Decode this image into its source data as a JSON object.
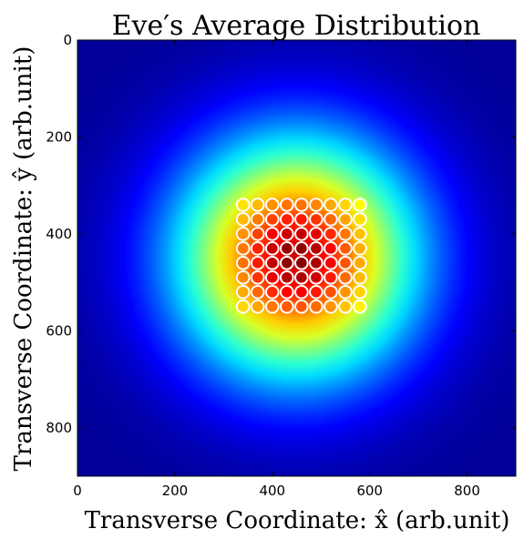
{
  "chart_data": {
    "type": "heatmap",
    "title": "Eve′s Average Distribution",
    "xlabel": "Transverse Coordinate: x̂ (arb.unit)",
    "ylabel": "Transverse Coordinate: ŷ (arb.unit)",
    "xlim": [
      0,
      900
    ],
    "ylim": [
      900,
      0
    ],
    "xticks": [
      0,
      200,
      400,
      600,
      800
    ],
    "yticks": [
      0,
      200,
      400,
      600,
      800
    ],
    "colormap": "jet",
    "colors": {
      "jet": [
        "#00007f",
        "#0000ff",
        "#007fff",
        "#00ffff",
        "#7fff7f",
        "#ffff00",
        "#ff7f00",
        "#ff0000",
        "#7f0000"
      ]
    },
    "intensity_peak": {
      "x": 450,
      "y": 450
    },
    "intensity_width": 170,
    "spot_grid": {
      "x": [
        340,
        370,
        400,
        430,
        460,
        490,
        520,
        550,
        580
      ],
      "y": [
        340,
        370,
        400,
        430,
        460,
        490,
        520,
        550
      ],
      "outline_color": "#ffffff"
    },
    "grid": false,
    "legend": "none"
  }
}
